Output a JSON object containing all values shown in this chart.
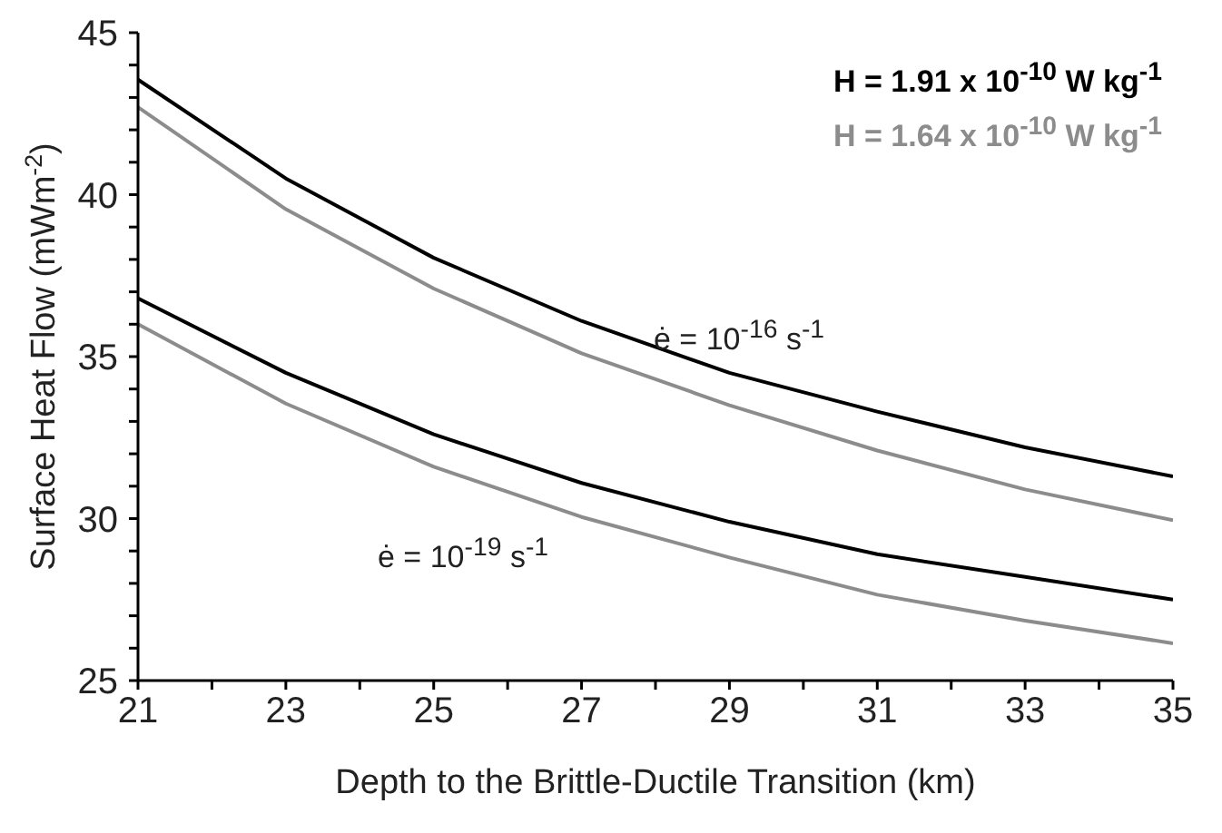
{
  "chart_data": {
    "type": "line",
    "xlabel": "Depth to the Brittle-Ductile Transition (km)",
    "ylabel": "Surface Heat Flow (mWm$^{-2}$)",
    "x": [
      21,
      23,
      25,
      27,
      29,
      31,
      33,
      35
    ],
    "series": [
      {
        "name": "H = 1.91 x 10$^{-10}$ W kg$^{-1}$",
        "color": "#000000",
        "values": [
          43.55,
          40.5,
          38.05,
          36.1,
          34.5,
          33.3,
          32.2,
          31.3
        ]
      },
      {
        "name": "H = 1.64 x 10$^{-10}$ W kg$^{-1}$",
        "color": "#8c8c8c",
        "values": [
          42.7,
          39.55,
          37.1,
          35.1,
          33.5,
          32.1,
          30.9,
          29.95
        ]
      },
      {
        "color": "#000000",
        "values": [
          36.8,
          34.5,
          32.6,
          31.1,
          29.9,
          28.9,
          28.2,
          27.5
        ]
      },
      {
        "color": "#8c8c8c",
        "values": [
          36.0,
          33.55,
          31.6,
          30.05,
          28.8,
          27.65,
          26.85,
          26.15
        ]
      }
    ],
    "annotations": [
      "ė = 10$^{-16}$ s$^{-1}$",
      "ė = 10$^{-19}$ s$^{-1}$"
    ],
    "xlim": [
      21,
      35
    ],
    "xticks": [
      21,
      {
        "value": 22,
        "label": null
      },
      23,
      {
        "value": 24,
        "label": null
      },
      25,
      {
        "value": 26,
        "label": null
      },
      27,
      {
        "value": 28,
        "label": null
      },
      29,
      {
        "value": 30,
        "label": null
      },
      31,
      {
        "value": 32,
        "label": null
      },
      33,
      {
        "value": 34,
        "label": null
      },
      35
    ],
    "ylim": [
      25,
      45
    ],
    "yticks": [
      25,
      {
        "value": 26,
        "label": null
      },
      {
        "value": 27,
        "label": null
      },
      {
        "value": 28,
        "label": null
      },
      {
        "value": 29,
        "label": null
      },
      30,
      {
        "value": 31,
        "label": null
      },
      {
        "value": 32,
        "label": null
      },
      {
        "value": 33,
        "label": null
      },
      {
        "value": 34,
        "label": null
      },
      35,
      {
        "value": 36,
        "label": null
      },
      {
        "value": 37,
        "label": null
      },
      {
        "value": 38,
        "label": null
      },
      {
        "value": 39,
        "label": null
      },
      40,
      {
        "value": 41,
        "label": null
      },
      {
        "value": 42,
        "label": null
      },
      {
        "value": 43,
        "label": null
      },
      {
        "value": 44,
        "label": null
      },
      45
    ],
    "grid": false,
    "legend": "top right",
    "marker": "none",
    "line_style": "solid"
  }
}
